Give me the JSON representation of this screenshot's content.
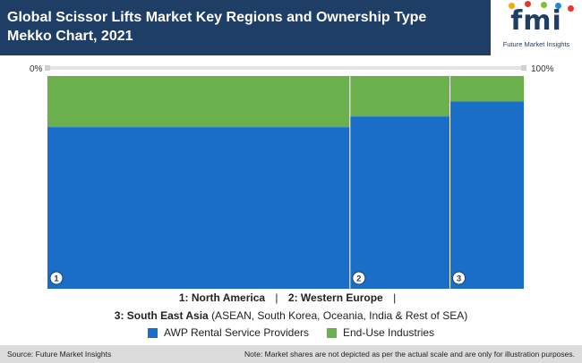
{
  "header": {
    "title": "Global Scissor Lifts Market Key Regions and Ownership Type Mekko Chart, 2021",
    "logo_text": "fmi",
    "logo_subtitle": "Future Market Insights",
    "logo_dot_colors": [
      "#f2a900",
      "#e5352c",
      "#7bbf3a",
      "#1b8ad6",
      "#e5352c"
    ]
  },
  "chart_data": {
    "type": "mekko",
    "x_axis_labels": {
      "start": "0%",
      "end": "100%"
    },
    "columns": [
      {
        "id": "1",
        "width_pct": 63.5,
        "shares": {
          "AWP Rental Service Providers": 76,
          "End-Use Industries": 24
        }
      },
      {
        "id": "2",
        "width_pct": 21.0,
        "shares": {
          "AWP Rental Service Providers": 81,
          "End-Use Industries": 19
        }
      },
      {
        "id": "3",
        "width_pct": 15.5,
        "shares": {
          "AWP Rental Service Providers": 88,
          "End-Use Industries": 12
        }
      }
    ],
    "series": [
      {
        "name": "AWP Rental Service Providers",
        "color": "#1a6ec8"
      },
      {
        "name": "End-Use Industries",
        "color": "#6ab04c"
      }
    ]
  },
  "legend": {
    "regions": [
      {
        "num": "1:",
        "name": "North America",
        "detail": ""
      },
      {
        "num": "2:",
        "name": "Western Europe",
        "detail": ""
      },
      {
        "num": "3:",
        "name": "South East Asia",
        "detail": "(ASEAN, South Korea, Oceania, India & Rest of SEA)"
      }
    ],
    "separator": "|"
  },
  "footer": {
    "source": "Source: Future Market Insights",
    "note": "Note: Market shares are not depicted as per the actual scale and are only for illustration purposes."
  }
}
